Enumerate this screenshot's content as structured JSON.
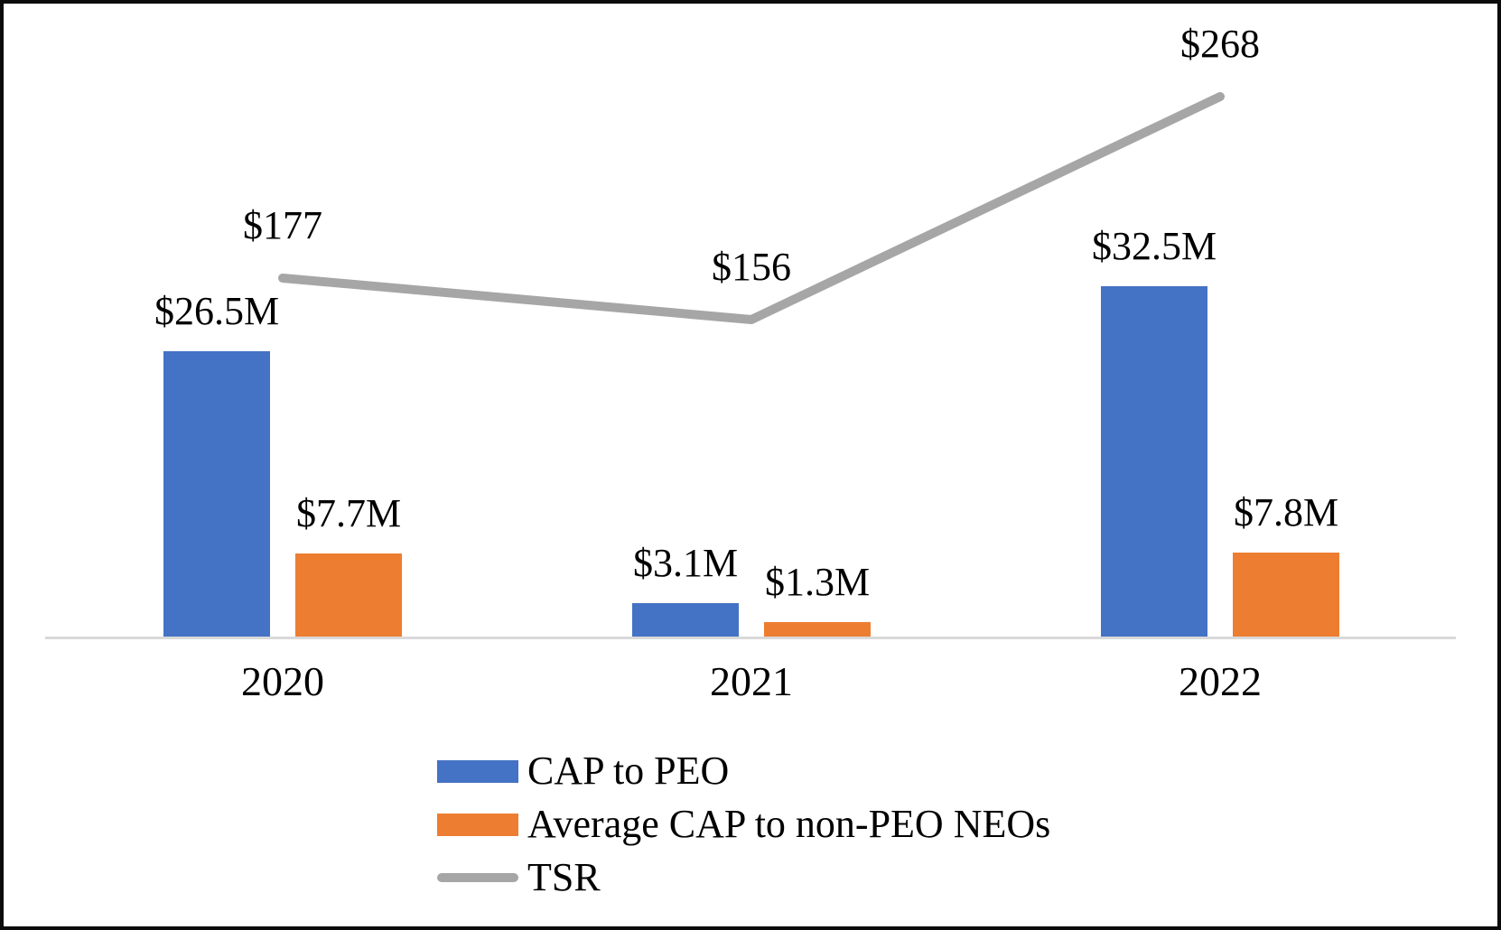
{
  "chart_data": {
    "type": "combo-bar-line",
    "title": "",
    "categories": [
      "2020",
      "2021",
      "2022"
    ],
    "series": [
      {
        "name": "CAP to PEO",
        "type": "bar",
        "color": "#4472C4",
        "values_millions": [
          26.5,
          3.1,
          32.5
        ],
        "labels": [
          "$26.5M",
          "$3.1M",
          "$32.5M"
        ]
      },
      {
        "name": "Average CAP to non-PEO NEOs",
        "type": "bar",
        "color": "#ED7D31",
        "values_millions": [
          7.7,
          1.3,
          7.8
        ],
        "labels": [
          "$7.7M",
          "$1.3M",
          "$7.8M"
        ]
      },
      {
        "name": "TSR",
        "type": "line",
        "color": "#A6A6A6",
        "values": [
          177,
          156,
          268
        ],
        "labels": [
          "$177",
          "$156",
          "$268"
        ]
      }
    ],
    "legend_position": "bottom",
    "grid": false,
    "axis": {
      "x_baseline_color": "#D9D9D9",
      "y_axis_visible": false
    }
  },
  "palette": {
    "background": "#FFFFFF",
    "frame_border": "#0B0B0B",
    "text": "#000000"
  }
}
